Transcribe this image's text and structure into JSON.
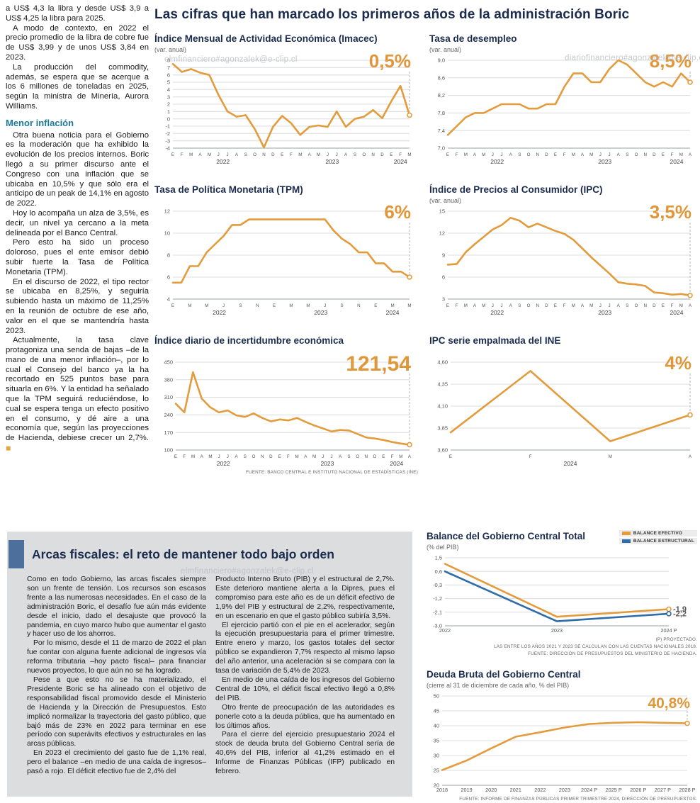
{
  "main_title": "Las cifras que han marcado los primeros años de la administración Boric",
  "article": {
    "intro_paragraphs": [
      "a US$ 4,3 la libra y desde US$ 3,9 a US$ 4,25 la libra para 2025.",
      "A modo de contexto, en 2022 el precio promedio de la libra de cobre fue de US$ 3,99 y de unos US$ 3,84 en 2023.",
      "La producción del commodity, además, se espera que se acerque a los 6 millones de toneladas en 2025, según la ministra de Minería, Aurora Williams."
    ],
    "heading": "Menor inflación",
    "body_paragraphs": [
      "Otra buena noticia para el Gobierno es la moderación que ha exhibido la evolución de los precios internos. Boric llegó a su primer discurso ante el Congreso con una inflación que se ubicaba en 10,5% y que sólo era el anticipo de un peak de 14,1% en agosto de 2022.",
      "Hoy lo acompaña un alza de 3,5%, es decir, un nivel ya cercano a la meta delineada por el Banco Central.",
      "Pero esto ha sido un proceso doloroso, pues el ente emisor debió subir fuerte la Tasa de Política Monetaria (TPM).",
      "En el discurso de 2022, el tipo rector se ubicaba en 8,25%, y seguiría subiendo hasta un máximo de 11,25% en la reunión de octubre de ese año, valor en el que se mantendría hasta 2023."
    ],
    "last_paragraph": "Actualmente, la tasa clave protagoniza una senda de bajas –de la mano de una menor inflación–, por lo cual el Consejo del banco ya la ha recortado en 525 puntos base para situarla en 6%. Y la entidad ha señalado que la TPM seguirá reduciéndose, lo cual se espera tenga un efecto positivo en el consumo, y dé aire a una economía que, según las proyecciones de Hacienda, debiese crecer un 2,7%.",
    "end_mark": "◼"
  },
  "watermarks": {
    "top_left": "elmfinanciero#agonzalek@e-clip.cl",
    "top_right": "diariofinanciero#agonzalek@e-clip.cl",
    "bottom": "elmfinanciero#agonzalek@e-clip.cl"
  },
  "arcas": {
    "title": "Arcas fiscales: el reto de mantener todo bajo orden",
    "col1": [
      "Como en todo Gobierno, las arcas fiscales siempre son un frente de tensión. Los recursos son escasos frente a las numerosas necesidades. En el caso de la administración Boric, el desafío fue aún más evidente desde el inicio, dado el desajuste que provocó la pandemia, en cuyo marco hubo que aumentar el gasto y hacer uso de los ahorros.",
      "Por lo mismo, desde el 11 de marzo de 2022 el plan fue contar con alguna fuente adicional de ingresos vía reforma tributaria –hoy pacto fiscal– para financiar nuevos proyectos, lo que aún no se ha logrado.",
      "Pese a que esto no se ha materializado, el Presidente Boric se ha alineado con el objetivo de responsabilidad fiscal promovido desde el Ministerio de Hacienda y la Dirección de Presupuestos. Esto implicó normalizar la trayectoria del gasto público, que bajó más de 23% en 2022 para terminar en ese período con superávits efectivos y estructurales en las arcas públicas.",
      "En 2023 el crecimiento del gasto fue de 1,1% real, pero el balance –en medio de una caída de ingresos– pasó a rojo. El déficit efectivo fue de 2,4% del"
    ],
    "col2": [
      "Producto Interno Bruto (PIB) y el estructural de 2,7%. Este deterioro mantiene alerta a la Dipres, pues el compromiso para este año es de un déficit efectivo de 1,9% del PIB y estructural de 2,2%, respectivamente, en un escenario en que el gasto público subiría 3,5%.",
      "El ejercicio partió con el pie en el acelerador, según la ejecución presupuestaria para el primer trimestre. Entre enero y marzo, los gastos totales del sector público se expandieron 7,7% respecto al mismo lapso del año anterior, una aceleración si se compara con la tasa de variación de 5,4% de 2023.",
      "En medio de una caída de los ingresos del Gobierno Central de 10%, el déficit fiscal efectivo llegó a 0,8% del PIB.",
      "Otro frente de preocupación de las autoridades es ponerle coto a la deuda pública, que ha aumentado en los últimos años.",
      "Para el cierre del ejercicio presupuestario 2024 el stock de deuda bruta del Gobierno Central sería de 40,6% del PIB, inferior al 41,2% estimado en el Informe de Finanzas Públicas (IFP) publicado en febrero."
    ]
  },
  "chart_data": [
    {
      "name": "imacec",
      "type": "line",
      "title": "Índice Mensual de Actividad Económica (Imacec)",
      "subtitle": "(var. anual)",
      "highlight": "0,5%",
      "ylim": [
        -4,
        8
      ],
      "yticks": [
        8,
        7,
        6,
        5,
        4,
        3,
        2,
        1,
        0,
        -1,
        -2,
        -3,
        -4
      ],
      "ytick_labels": [
        "8",
        "7",
        "6",
        "5",
        "4",
        "3",
        "2",
        "1",
        "0",
        "-1",
        "-2",
        "-3",
        "-4"
      ],
      "x_labels": [
        "E",
        "F",
        "M",
        "A",
        "M",
        "J",
        "J",
        "A",
        "S",
        "O",
        "N",
        "D",
        "E",
        "F",
        "M",
        "A",
        "M",
        "J",
        "J",
        "A",
        "S",
        "O",
        "N",
        "D",
        "E",
        "F",
        "M"
      ],
      "xstyle": "months",
      "year_groups": [
        {
          "label": "2022",
          "span": 12
        },
        {
          "label": "2023",
          "span": 12
        },
        {
          "label": "2024",
          "span": 3
        }
      ],
      "series": [
        {
          "name": "Imacec var. anual",
          "color": "#E39B3C",
          "values": [
            7.5,
            6.4,
            6.8,
            6.3,
            6.0,
            3.3,
            1.0,
            0.3,
            0.5,
            -1.4,
            -3.9,
            -1.1,
            0.4,
            -0.6,
            -2.2,
            -1.1,
            -0.9,
            -1.1,
            1.0,
            -1.1,
            0.0,
            0.3,
            1.2,
            0.1,
            2.4,
            4.5,
            0.5
          ]
        }
      ],
      "height": 158,
      "ml": 26,
      "mr": 12,
      "hl_size": 26
    },
    {
      "name": "desempleo",
      "type": "line",
      "title": "Tasa de desempleo",
      "subtitle": "(var. anual)",
      "highlight": "8,5%",
      "ylim": [
        7.0,
        9.0
      ],
      "yticks": [
        9.0,
        8.6,
        8.2,
        7.8,
        7.4,
        7.0
      ],
      "ytick_labels": [
        "9,0",
        "8,6",
        "8,2",
        "7,8",
        "7,4",
        "7,0"
      ],
      "x_labels": [
        "E",
        "F",
        "M",
        "A",
        "M",
        "J",
        "J",
        "A",
        "S",
        "O",
        "N",
        "D",
        "E",
        "F",
        "M",
        "A",
        "M",
        "J",
        "J",
        "A",
        "S",
        "O",
        "N",
        "D",
        "E",
        "F",
        "M",
        "A"
      ],
      "xstyle": "months",
      "year_groups": [
        {
          "label": "2022",
          "span": 12
        },
        {
          "label": "2023",
          "span": 12
        },
        {
          "label": "2024",
          "span": 4
        }
      ],
      "series": [
        {
          "name": "Tasa de desempleo",
          "color": "#E39B3C",
          "values": [
            7.3,
            7.5,
            7.7,
            7.8,
            7.8,
            7.9,
            8.0,
            8.0,
            8.0,
            7.9,
            7.9,
            8.0,
            8.0,
            8.4,
            8.7,
            8.7,
            8.5,
            8.5,
            8.8,
            9.0,
            8.9,
            8.7,
            8.5,
            8.4,
            8.5,
            8.4,
            8.7,
            8.5
          ]
        }
      ],
      "height": 158,
      "ml": 26,
      "mr": 12,
      "hl_size": 26
    },
    {
      "name": "tpm",
      "type": "line",
      "title": "Tasa de Política Monetaria (TPM)",
      "subtitle": "",
      "highlight": "6%",
      "ylim": [
        4,
        12
      ],
      "yticks": [
        12,
        10,
        8,
        6,
        4
      ],
      "ytick_labels": [
        "12",
        "10",
        "8",
        "6",
        "4"
      ],
      "x_labels": [
        "E",
        "",
        "M",
        "",
        "M",
        "",
        "J",
        "",
        "S",
        "",
        "N",
        "",
        "E",
        "",
        "M",
        "",
        "M",
        "",
        "J",
        "",
        "S",
        "",
        "N",
        "",
        "E",
        "",
        "M",
        "",
        "M"
      ],
      "xstyle": "months",
      "year_groups": [
        {
          "label": "2022",
          "span": 12
        },
        {
          "label": "2023",
          "span": 12
        },
        {
          "label": "2024",
          "span": 5
        }
      ],
      "series": [
        {
          "name": "TPM",
          "color": "#E39B3C",
          "values": [
            5.5,
            5.5,
            7.0,
            7.0,
            8.25,
            9.0,
            9.75,
            10.75,
            10.75,
            11.25,
            11.25,
            11.25,
            11.25,
            11.25,
            11.25,
            11.25,
            11.25,
            11.25,
            11.25,
            10.25,
            9.5,
            9.0,
            8.25,
            8.25,
            7.25,
            7.25,
            6.5,
            6.5,
            6.0
          ]
        }
      ],
      "height": 158,
      "ml": 26,
      "mr": 12,
      "hl_size": 26
    },
    {
      "name": "ipc",
      "type": "line",
      "title": "Índice de Precios al Consumidor (IPC)",
      "subtitle": "(var. anual)",
      "highlight": "3,5%",
      "ylim": [
        3,
        15
      ],
      "yticks": [
        15,
        12,
        9,
        6,
        3
      ],
      "ytick_labels": [
        "15",
        "12",
        "9",
        "6",
        "3"
      ],
      "x_labels": [
        "E",
        "F",
        "M",
        "A",
        "M",
        "J",
        "J",
        "A",
        "S",
        "O",
        "N",
        "D",
        "E",
        "F",
        "M",
        "A",
        "M",
        "J",
        "J",
        "A",
        "S",
        "O",
        "N",
        "D",
        "E",
        "F",
        "M",
        "A"
      ],
      "xstyle": "months",
      "year_groups": [
        {
          "label": "2022",
          "span": 12
        },
        {
          "label": "2023",
          "span": 12
        },
        {
          "label": "2024",
          "span": 4
        }
      ],
      "series": [
        {
          "name": "IPC var. anual",
          "color": "#E39B3C",
          "values": [
            7.7,
            7.8,
            9.4,
            10.5,
            11.5,
            12.5,
            13.1,
            14.1,
            13.7,
            12.8,
            13.3,
            12.8,
            12.3,
            11.9,
            11.1,
            9.9,
            8.7,
            7.6,
            6.5,
            5.3,
            5.1,
            5.0,
            4.8,
            3.9,
            3.8,
            3.6,
            3.7,
            3.5
          ]
        }
      ],
      "height": 158,
      "ml": 26,
      "mr": 12,
      "hl_size": 26
    },
    {
      "name": "incertidumbre",
      "type": "line",
      "title": "Índice diario de incertidumbre económica",
      "subtitle": "",
      "highlight": "121,54",
      "ylim": [
        100,
        450
      ],
      "yticks": [
        450,
        380,
        310,
        240,
        170,
        100
      ],
      "ytick_labels": [
        "450",
        "380",
        "310",
        "240",
        "170",
        "100"
      ],
      "x_labels": [
        "E",
        "F",
        "M",
        "A",
        "M",
        "J",
        "J",
        "A",
        "S",
        "O",
        "N",
        "D",
        "E",
        "F",
        "M",
        "A",
        "M",
        "J",
        "J",
        "A",
        "S",
        "O",
        "N",
        "D",
        "E",
        "F",
        "M",
        "A"
      ],
      "xstyle": "months",
      "year_groups": [
        {
          "label": "2022",
          "span": 12
        },
        {
          "label": "2023",
          "span": 12
        },
        {
          "label": "2024",
          "span": 4
        }
      ],
      "series": [
        {
          "name": "Incertidumbre económica",
          "color": "#E39B3C",
          "values": [
            285,
            250,
            410,
            305,
            270,
            250,
            258,
            238,
            232,
            246,
            228,
            214,
            222,
            218,
            228,
            212,
            198,
            186,
            174,
            180,
            178,
            164,
            150,
            146,
            140,
            132,
            126,
            121.54
          ]
        }
      ],
      "notes": [
        "FUENTE: BANCO CENTRAL E INSTITUTO NACIONAL DE ESTADÍSTICAS (INE)"
      ],
      "height": 158,
      "ml": 30,
      "mr": 12,
      "hl_size": 30
    },
    {
      "name": "ipc-empalmada",
      "type": "line",
      "title": "IPC serie empalmada del INE",
      "subtitle": "",
      "highlight": "4%",
      "ylim": [
        3.6,
        4.6
      ],
      "yticks": [
        4.6,
        4.35,
        4.1,
        3.85,
        3.6
      ],
      "ytick_labels": [
        "4,60",
        "4,35",
        "4,10",
        "3,85",
        "3,60"
      ],
      "x_labels": [
        "E",
        "F",
        "M",
        "A"
      ],
      "xstyle": "months",
      "year_groups": [
        {
          "label": "2024",
          "span": 4
        }
      ],
      "series": [
        {
          "name": "IPC serie empalmada",
          "color": "#E39B3C",
          "values": [
            3.8,
            4.5,
            3.7,
            4.0
          ]
        }
      ],
      "height": 158,
      "ml": 30,
      "mr": 12,
      "hl_size": 26
    },
    {
      "name": "balance-gobierno-central",
      "type": "line",
      "title": "Balance del Gobierno Central Total",
      "subtitle": "(% del PIB)",
      "ylim": [
        -3.0,
        1.5
      ],
      "yticks": [
        1.5,
        0.6,
        -0.3,
        -1.2,
        -2.1,
        -3.0
      ],
      "ytick_labels": [
        "1,5",
        "0,6",
        "-0,3",
        "-1,2",
        "-2,1",
        "-3,0"
      ],
      "x_labels": [
        "2022",
        "2023",
        "2024 P"
      ],
      "xstyle": "years",
      "legend": [
        {
          "label": "BALANCE EFECTIVO",
          "color": "#E39B3C"
        },
        {
          "label": "BALANCE ESTRUCTURAL",
          "color": "#2F6DA8"
        }
      ],
      "series": [
        {
          "name": "Balance efectivo",
          "color": "#E39B3C",
          "values": [
            1.1,
            -2.4,
            -1.9
          ],
          "end_label": "-1,9"
        },
        {
          "name": "Balance estructural",
          "color": "#2F6DA8",
          "values": [
            0.6,
            -2.7,
            -2.2
          ],
          "end_label": "-2,2"
        }
      ],
      "notes": [
        "(P) PROYECTADO.",
        "LAS ENTRE LOS AÑOS 2021 Y 2023 SE CALCULAN  CON LAS CUENTAS NACIONALES 2018.",
        "FUENTE: DIRECCIÓN DE PRESUPUESTOS DEL MINISTERIO DE HACIENDA."
      ],
      "height": 118,
      "ml": 26,
      "mr": 40
    },
    {
      "name": "deuda-bruta",
      "type": "line",
      "title": "Deuda Bruta del Gobierno Central",
      "subtitle": "(cierre al 31 de diciembre de cada año, % del PIB)",
      "highlight": "40,8%",
      "ylim": [
        20,
        50
      ],
      "yticks": [
        50,
        45,
        40,
        35,
        30,
        25,
        20
      ],
      "ytick_labels": [
        "50",
        "45",
        "40",
        "35",
        "30",
        "25",
        "20"
      ],
      "x_labels": [
        "2018",
        "2019",
        "2020",
        "2021",
        "2022",
        "2023",
        "2024 P",
        "2025 P",
        "2026 P",
        "2027 P",
        "2028 P"
      ],
      "xstyle": "years",
      "series": [
        {
          "name": "Deuda bruta % PIB",
          "color": "#E39B3C",
          "values": [
            25.1,
            28.3,
            32.4,
            36.3,
            37.8,
            39.4,
            40.6,
            41.0,
            41.2,
            41.0,
            40.8
          ]
        }
      ],
      "notes": [
        "FUENTE: INFORME DE FINANZAS PÚBLICAS PRIMER TRIMESTRE 2024, DIRECCIÓN DE PRESUPUESTOS."
      ],
      "height": 148,
      "ml": 22,
      "mr": 14,
      "hl_size": 21,
      "hl_top": 8
    }
  ]
}
